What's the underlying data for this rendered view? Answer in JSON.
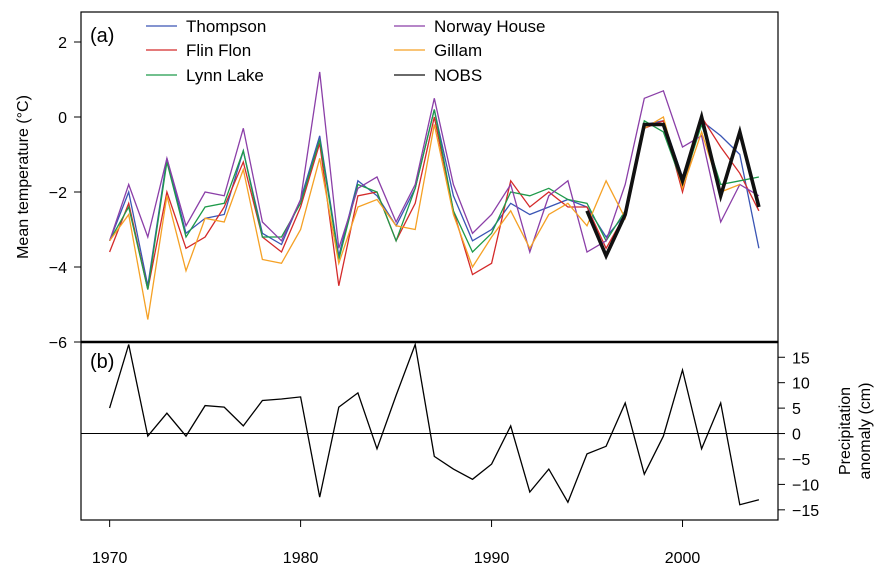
{
  "chart_data": [
    {
      "type": "line",
      "panel_label": "(a)",
      "ylabel": "Mean temperature (°C)",
      "ylim": [
        -6,
        2.8
      ],
      "yticks": [
        -6,
        -4,
        -2,
        0,
        2
      ],
      "xlim": [
        1968.5,
        2005
      ],
      "legend": "top-left, two columns",
      "series": [
        {
          "name": "Thompson",
          "color": "#3a55b4",
          "x": [
            1970,
            1971,
            1972,
            1973,
            1974,
            1975,
            1976,
            1977,
            1978,
            1979,
            1980,
            1981,
            1982,
            1983,
            1984,
            1985,
            1986,
            1987,
            1988,
            1989,
            1990,
            1991,
            1992,
            1993,
            1994,
            1995,
            1996,
            1997,
            1998,
            1999,
            2000,
            2001,
            2002,
            2003,
            2004
          ],
          "y": [
            -3.3,
            -2.0,
            -4.5,
            -1.1,
            -3.1,
            -2.7,
            -2.6,
            -0.9,
            -3.1,
            -3.4,
            -2.2,
            -0.5,
            -3.7,
            -1.7,
            -2.1,
            -2.9,
            -1.9,
            0.2,
            -2.1,
            -3.3,
            -3.0,
            -2.3,
            -2.6,
            -2.4,
            -2.2,
            -2.4,
            -3.2,
            -2.6,
            -0.2,
            -0.1,
            -1.6,
            -0.1,
            -0.5,
            -1.0,
            -3.5
          ]
        },
        {
          "name": "Flin Flon",
          "color": "#d42a2a",
          "x": [
            1970,
            1971,
            1972,
            1973,
            1974,
            1975,
            1976,
            1977,
            1978,
            1979,
            1980,
            1981,
            1982,
            1983,
            1984,
            1985,
            1986,
            1987,
            1988,
            1989,
            1990,
            1991,
            1992,
            1993,
            1994,
            1995,
            1996,
            1997,
            1998,
            1999,
            2000,
            2001,
            2002,
            2003,
            2004
          ],
          "y": [
            -3.6,
            -2.3,
            -4.6,
            -2.0,
            -3.5,
            -3.2,
            -2.4,
            -1.2,
            -3.2,
            -3.6,
            -2.4,
            -0.7,
            -4.5,
            -2.1,
            -2.0,
            -3.3,
            -2.3,
            0.0,
            -2.5,
            -4.2,
            -3.9,
            -1.7,
            -2.4,
            -2.0,
            -2.4,
            -2.4,
            -3.5,
            -2.6,
            -0.3,
            -0.1,
            -2.0,
            0.0,
            -0.8,
            -1.5,
            -2.5
          ]
        },
        {
          "name": "Lynn Lake",
          "color": "#1e9a4a",
          "x": [
            1970,
            1971,
            1972,
            1973,
            1974,
            1975,
            1976,
            1977,
            1978,
            1979,
            1980,
            1981,
            1982,
            1983,
            1984,
            1985,
            1986,
            1987,
            1988,
            1989,
            1990,
            1991,
            1992,
            1993,
            1994,
            1995,
            1996,
            1997,
            1998,
            1999,
            2000,
            2001,
            2002,
            2003,
            2004
          ],
          "y": [
            -3.3,
            -2.4,
            -4.6,
            -1.2,
            -3.2,
            -2.4,
            -2.3,
            -0.9,
            -3.2,
            -3.2,
            -2.3,
            -0.6,
            -3.8,
            -1.8,
            -2.0,
            -3.3,
            -1.9,
            0.2,
            -2.5,
            -3.6,
            -3.1,
            -2.0,
            -2.1,
            -1.9,
            -2.2,
            -2.3,
            -3.3,
            -2.5,
            -0.1,
            -0.4,
            -1.8,
            -0.2,
            -1.8,
            -1.7,
            -1.6
          ]
        },
        {
          "name": "Norway House",
          "color": "#8b3fa8",
          "x": [
            1970,
            1971,
            1972,
            1973,
            1974,
            1975,
            1976,
            1977,
            1978,
            1979,
            1980,
            1981,
            1982,
            1983,
            1984,
            1985,
            1986,
            1987,
            1988,
            1989,
            1990,
            1991,
            1992,
            1993,
            1994,
            1995,
            1996,
            1997,
            1998,
            1999,
            2000,
            2001,
            2002,
            2003,
            2004
          ],
          "y": [
            -3.3,
            -1.8,
            -3.2,
            -1.1,
            -2.9,
            -2.0,
            -2.1,
            -0.3,
            -2.8,
            -3.3,
            -2.2,
            1.2,
            -3.5,
            -1.9,
            -1.6,
            -2.8,
            -1.8,
            0.5,
            -1.8,
            -3.1,
            -2.6,
            -1.8,
            -3.6,
            -2.1,
            -1.7,
            -3.6,
            -3.3,
            -1.8,
            0.5,
            0.7,
            -0.8,
            -0.5,
            -2.8,
            -1.8,
            -2.1
          ]
        },
        {
          "name": "Gillam",
          "color": "#f5a125",
          "x": [
            1970,
            1971,
            1972,
            1973,
            1974,
            1975,
            1976,
            1977,
            1978,
            1979,
            1980,
            1981,
            1982,
            1983,
            1984,
            1985,
            1986,
            1987,
            1988,
            1989,
            1990,
            1991,
            1992,
            1993,
            1994,
            1995,
            1996,
            1997,
            1998,
            1999,
            2000,
            2001,
            2002,
            2003,
            2004
          ],
          "y": [
            -3.3,
            -2.6,
            -5.4,
            -2.1,
            -4.1,
            -2.7,
            -2.8,
            -1.4,
            -3.8,
            -3.9,
            -3.0,
            -1.1,
            -3.9,
            -2.4,
            -2.2,
            -2.9,
            -3.0,
            -0.2,
            -2.6,
            -4.0,
            -3.2,
            -2.5,
            -3.5,
            -2.6,
            -2.3,
            -2.9,
            -1.7,
            -2.7,
            -0.3,
            0.0,
            -1.9,
            -0.4,
            -2.0,
            -1.8,
            null
          ]
        },
        {
          "name": "NOBS",
          "color": "#111111",
          "bold": true,
          "x": [
            1995,
            1996,
            1997,
            1998,
            1999,
            2000,
            2001,
            2002,
            2003,
            2004
          ],
          "y": [
            -2.5,
            -3.7,
            -2.6,
            -0.2,
            -0.2,
            -1.7,
            0.0,
            -2.1,
            -0.4,
            -2.4
          ]
        }
      ]
    },
    {
      "type": "line",
      "panel_label": "(b)",
      "ylabel": "Precipitation anomaly (cm)",
      "ylim": [
        -17,
        18
      ],
      "yticks": [
        -15,
        -10,
        -5,
        0,
        5,
        10,
        15
      ],
      "xlim": [
        1968.5,
        2005
      ],
      "xticks": [
        1970,
        1980,
        1990,
        2000
      ],
      "series": [
        {
          "name": "",
          "color": "#000000",
          "x": [
            1970,
            1971,
            1972,
            1973,
            1974,
            1975,
            1976,
            1977,
            1978,
            1979,
            1980,
            1981,
            1982,
            1983,
            1984,
            1985,
            1986,
            1987,
            1988,
            1989,
            1990,
            1991,
            1992,
            1993,
            1994,
            1995,
            1996,
            1997,
            1998,
            1999,
            2000,
            2001,
            2002,
            2003,
            2004
          ],
          "y": [
            5,
            17.5,
            -0.5,
            4,
            -0.5,
            5.5,
            5.2,
            1.5,
            6.5,
            6.8,
            7.2,
            -12.5,
            5.2,
            8,
            -3,
            7.5,
            17.5,
            -4.5,
            -7,
            -9,
            -6,
            1.5,
            -11.5,
            -7,
            -13.5,
            -4,
            -2.5,
            6,
            -8,
            -0.5,
            12.5,
            -3,
            6,
            -14,
            -13
          ]
        },
        {
          "name": "",
          "color": "#000000",
          "reference_line": true,
          "x": [
            1968.5,
            2005
          ],
          "y": [
            0,
            0
          ]
        }
      ]
    }
  ]
}
